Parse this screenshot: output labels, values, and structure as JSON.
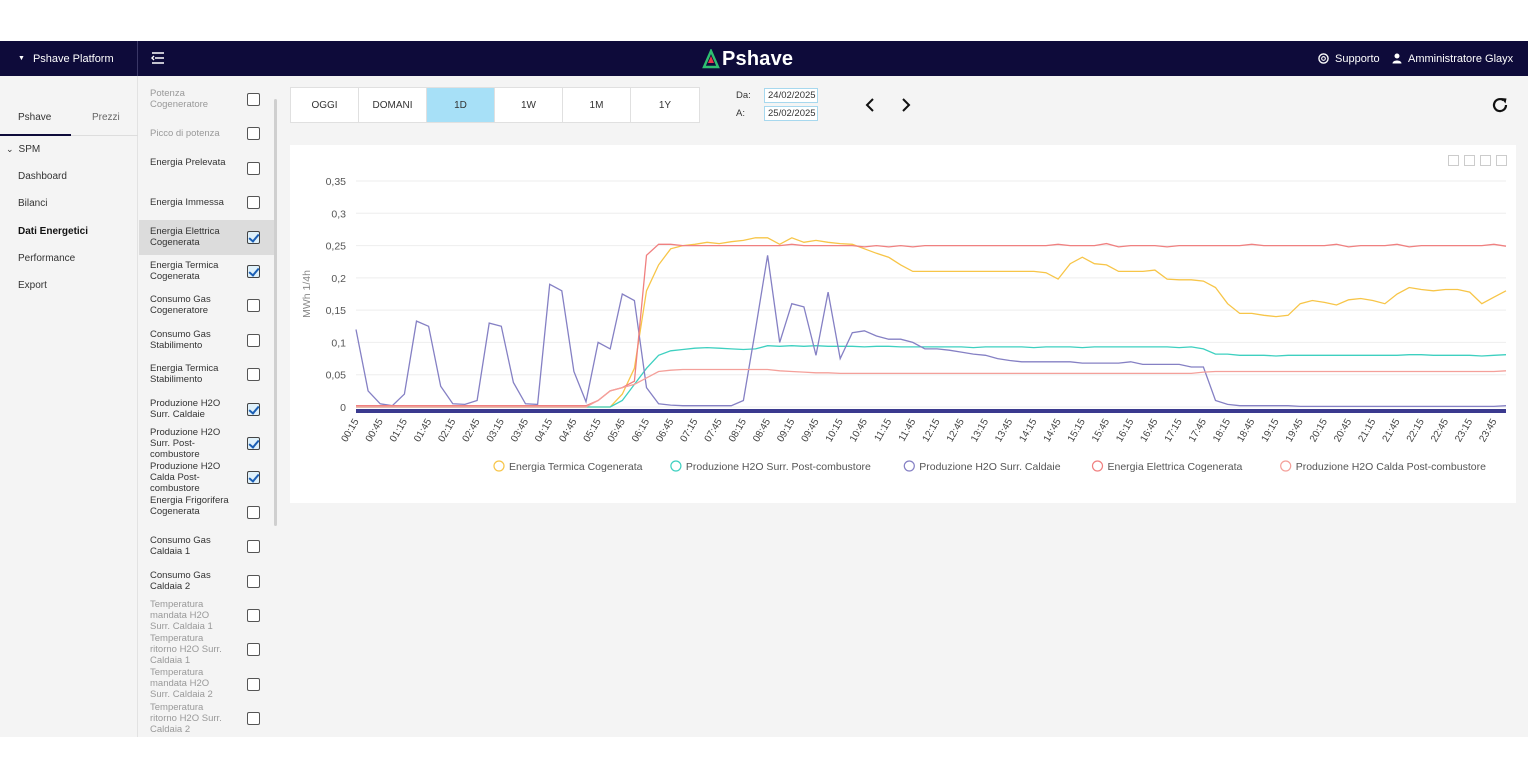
{
  "app": {
    "brand_label": "Pshave Platform",
    "logo_text": "Pshave",
    "support_label": "Supporto",
    "user_label": "Amministratore Glayx"
  },
  "nav": {
    "tabs": [
      "Pshave",
      "Prezzi"
    ],
    "group_label": "SPM",
    "items": [
      "Dashboard",
      "Bilanci",
      "Dati Energetici",
      "Performance",
      "Export"
    ],
    "active_item": "Dati Energetici"
  },
  "series_list": [
    {
      "label": "Potenza Cogeneratore",
      "checked": false,
      "dim": true
    },
    {
      "label": "Picco di potenza",
      "checked": false,
      "dim": true
    },
    {
      "label": "Energia Prelevata",
      "checked": false,
      "dim": false
    },
    {
      "label": "Energia Immessa",
      "checked": false,
      "dim": false
    },
    {
      "label": "Energia Elettrica Cogenerata",
      "checked": true,
      "dim": false,
      "selected": true
    },
    {
      "label": "Energia Termica Cogenerata",
      "checked": true,
      "dim": false
    },
    {
      "label": "Consumo Gas Cogeneratore",
      "checked": false,
      "dim": false
    },
    {
      "label": "Consumo Gas Stabilimento",
      "checked": false,
      "dim": false
    },
    {
      "label": "Energia Termica Stabilimento",
      "checked": false,
      "dim": false
    },
    {
      "label": "Produzione H2O Surr. Caldaie",
      "checked": true,
      "dim": false
    },
    {
      "label": "Produzione H2O Surr. Post-combustore",
      "checked": true,
      "dim": false
    },
    {
      "label": "Produzione H2O Calda Post-combustore",
      "checked": true,
      "dim": false
    },
    {
      "label": "Energia Frigorifera Cogenerata",
      "checked": false,
      "dim": false
    },
    {
      "label": "Consumo Gas Caldaia 1",
      "checked": false,
      "dim": false
    },
    {
      "label": "Consumo Gas Caldaia 2",
      "checked": false,
      "dim": false
    },
    {
      "label": "Temperatura mandata H2O Surr. Caldaia 1",
      "checked": false,
      "dim": true
    },
    {
      "label": "Temperatura ritorno H2O Surr. Caldaia 1",
      "checked": false,
      "dim": true
    },
    {
      "label": "Temperatura mandata H2O Surr. Caldaia 2",
      "checked": false,
      "dim": true
    },
    {
      "label": "Temperatura ritorno H2O Surr. Caldaia 2",
      "checked": false,
      "dim": true
    }
  ],
  "periods": {
    "buttons": [
      "OGGI",
      "DOMANI",
      "1D",
      "1W",
      "1M",
      "1Y"
    ],
    "active": "1D"
  },
  "dates": {
    "from_label": "Da:",
    "from_value": "24/02/2025",
    "to_label": "A:",
    "to_value": "25/02/2025"
  },
  "colors": {
    "topbar": "#0e0b3a",
    "accent": "#a7e0f7",
    "termica": "#f7c548",
    "post": "#3ed0c0",
    "caldaie": "#8580c4",
    "elettrica": "#f08080",
    "calda": "#f4a09a"
  },
  "chart_data": {
    "type": "line",
    "ylabel": "MWh 1/4h",
    "ylim": [
      0,
      0.35
    ],
    "yticks": [
      "0",
      "0,05",
      "0,1",
      "0,15",
      "0,2",
      "0,25",
      "0,3",
      "0,35"
    ],
    "xticks": [
      "00:15",
      "00:45",
      "01:15",
      "01:45",
      "02:15",
      "02:45",
      "03:15",
      "03:45",
      "04:15",
      "04:45",
      "05:15",
      "05:45",
      "06:15",
      "06:45",
      "07:15",
      "07:45",
      "08:15",
      "08:45",
      "09:15",
      "09:45",
      "10:15",
      "10:45",
      "11:15",
      "11:45",
      "12:15",
      "12:45",
      "13:15",
      "13:45",
      "14:15",
      "14:45",
      "15:15",
      "15:45",
      "16:15",
      "16:45",
      "17:15",
      "17:45",
      "18:15",
      "18:45",
      "19:15",
      "19:45",
      "20:15",
      "20:45",
      "21:15",
      "21:45",
      "22:15",
      "22:45",
      "23:15",
      "23:45"
    ],
    "x_count": 96,
    "series": [
      {
        "name": "Energia Termica Cogenerata",
        "color": "#f7c548",
        "values": [
          0,
          0,
          0,
          0,
          0,
          0,
          0,
          0,
          0,
          0,
          0,
          0,
          0,
          0,
          0,
          0,
          0,
          0,
          0,
          0,
          0,
          0,
          0.02,
          0.06,
          0.18,
          0.22,
          0.245,
          0.25,
          0.252,
          0.255,
          0.253,
          0.256,
          0.258,
          0.262,
          0.262,
          0.252,
          0.262,
          0.255,
          0.258,
          0.255,
          0.253,
          0.252,
          0.245,
          0.238,
          0.232,
          0.22,
          0.21,
          0.21,
          0.21,
          0.21,
          0.21,
          0.21,
          0.21,
          0.21,
          0.21,
          0.21,
          0.21,
          0.208,
          0.198,
          0.222,
          0.232,
          0.222,
          0.22,
          0.21,
          0.21,
          0.21,
          0.212,
          0.198,
          0.197,
          0.197,
          0.195,
          0.185,
          0.16,
          0.145,
          0.145,
          0.142,
          0.14,
          0.142,
          0.16,
          0.165,
          0.162,
          0.158,
          0.166,
          0.168,
          0.165,
          0.16,
          0.175,
          0.185,
          0.182,
          0.18,
          0.182,
          0.182,
          0.178,
          0.16,
          0.17,
          0.18
        ]
      },
      {
        "name": "Produzione H2O Surr. Post-combustore",
        "color": "#3ed0c0",
        "values": [
          0,
          0,
          0,
          0,
          0,
          0,
          0,
          0,
          0,
          0,
          0,
          0,
          0,
          0,
          0,
          0,
          0,
          0,
          0,
          0,
          0,
          0,
          0.01,
          0.035,
          0.06,
          0.08,
          0.087,
          0.089,
          0.091,
          0.092,
          0.091,
          0.09,
          0.089,
          0.09,
          0.095,
          0.094,
          0.095,
          0.094,
          0.095,
          0.094,
          0.094,
          0.094,
          0.093,
          0.094,
          0.094,
          0.093,
          0.093,
          0.093,
          0.093,
          0.093,
          0.093,
          0.092,
          0.093,
          0.093,
          0.093,
          0.093,
          0.092,
          0.093,
          0.093,
          0.093,
          0.092,
          0.093,
          0.093,
          0.093,
          0.093,
          0.093,
          0.093,
          0.093,
          0.092,
          0.093,
          0.09,
          0.082,
          0.082,
          0.08,
          0.08,
          0.08,
          0.079,
          0.08,
          0.08,
          0.08,
          0.08,
          0.08,
          0.08,
          0.08,
          0.08,
          0.08,
          0.08,
          0.081,
          0.081,
          0.08,
          0.08,
          0.08,
          0.08,
          0.079,
          0.08,
          0.081
        ]
      },
      {
        "name": "Produzione H2O Surr. Caldaie",
        "color": "#8580c4",
        "values": [
          0.12,
          0.025,
          0.005,
          0.002,
          0.02,
          0.133,
          0.125,
          0.032,
          0.005,
          0.004,
          0.01,
          0.13,
          0.125,
          0.038,
          0.005,
          0.004,
          0.19,
          0.18,
          0.055,
          0.008,
          0.1,
          0.09,
          0.175,
          0.165,
          0.03,
          0.005,
          0.003,
          0.002,
          0.002,
          0.002,
          0.002,
          0.002,
          0.01,
          0.12,
          0.235,
          0.1,
          0.16,
          0.155,
          0.08,
          0.178,
          0.075,
          0.115,
          0.118,
          0.11,
          0.105,
          0.105,
          0.1,
          0.09,
          0.09,
          0.088,
          0.085,
          0.082,
          0.08,
          0.075,
          0.072,
          0.07,
          0.07,
          0.07,
          0.07,
          0.07,
          0.068,
          0.068,
          0.068,
          0.068,
          0.07,
          0.066,
          0.066,
          0.066,
          0.066,
          0.062,
          0.062,
          0.01,
          0.004,
          0.002,
          0.002,
          0.002,
          0.002,
          0.002,
          0.001,
          0.001,
          0.001,
          0.001,
          0.001,
          0.001,
          0.001,
          0.001,
          0.001,
          0.001,
          0.001,
          0.001,
          0.001,
          0.001,
          0.001,
          0.001,
          0.001,
          0.002
        ]
      },
      {
        "name": "Energia Elettrica Cogenerata",
        "color": "#f08080",
        "values": [
          0.002,
          0.002,
          0.002,
          0.002,
          0.002,
          0.002,
          0.002,
          0.002,
          0.002,
          0.002,
          0.002,
          0.002,
          0.002,
          0.002,
          0.002,
          0.002,
          0.002,
          0.002,
          0.002,
          0.002,
          0.01,
          0.025,
          0.03,
          0.04,
          0.235,
          0.252,
          0.252,
          0.25,
          0.25,
          0.25,
          0.25,
          0.25,
          0.25,
          0.25,
          0.25,
          0.25,
          0.252,
          0.25,
          0.25,
          0.25,
          0.25,
          0.25,
          0.248,
          0.25,
          0.248,
          0.25,
          0.248,
          0.25,
          0.25,
          0.25,
          0.25,
          0.25,
          0.25,
          0.25,
          0.25,
          0.25,
          0.25,
          0.25,
          0.252,
          0.25,
          0.25,
          0.25,
          0.253,
          0.248,
          0.25,
          0.25,
          0.25,
          0.248,
          0.25,
          0.25,
          0.25,
          0.25,
          0.25,
          0.25,
          0.252,
          0.25,
          0.25,
          0.25,
          0.25,
          0.25,
          0.25,
          0.252,
          0.248,
          0.25,
          0.25,
          0.25,
          0.252,
          0.248,
          0.25,
          0.25,
          0.25,
          0.25,
          0.25,
          0.25,
          0.252,
          0.249
        ]
      },
      {
        "name": "Produzione H2O Calda Post-combustore",
        "color": "#f4a09a",
        "values": [
          0,
          0,
          0,
          0,
          0,
          0,
          0,
          0,
          0,
          0,
          0,
          0,
          0,
          0,
          0,
          0,
          0,
          0,
          0,
          0,
          0.01,
          0.025,
          0.03,
          0.035,
          0.045,
          0.055,
          0.057,
          0.058,
          0.058,
          0.058,
          0.058,
          0.058,
          0.058,
          0.058,
          0.058,
          0.056,
          0.055,
          0.054,
          0.053,
          0.053,
          0.052,
          0.052,
          0.052,
          0.052,
          0.052,
          0.052,
          0.052,
          0.052,
          0.052,
          0.052,
          0.052,
          0.052,
          0.052,
          0.052,
          0.052,
          0.052,
          0.052,
          0.052,
          0.052,
          0.052,
          0.052,
          0.052,
          0.052,
          0.052,
          0.052,
          0.052,
          0.052,
          0.052,
          0.052,
          0.052,
          0.054,
          0.055,
          0.055,
          0.055,
          0.055,
          0.055,
          0.055,
          0.055,
          0.055,
          0.055,
          0.055,
          0.055,
          0.055,
          0.055,
          0.055,
          0.055,
          0.055,
          0.055,
          0.055,
          0.055,
          0.055,
          0.055,
          0.055,
          0.055,
          0.055,
          0.056
        ]
      }
    ],
    "legend_position": "bottom",
    "grid": true
  }
}
